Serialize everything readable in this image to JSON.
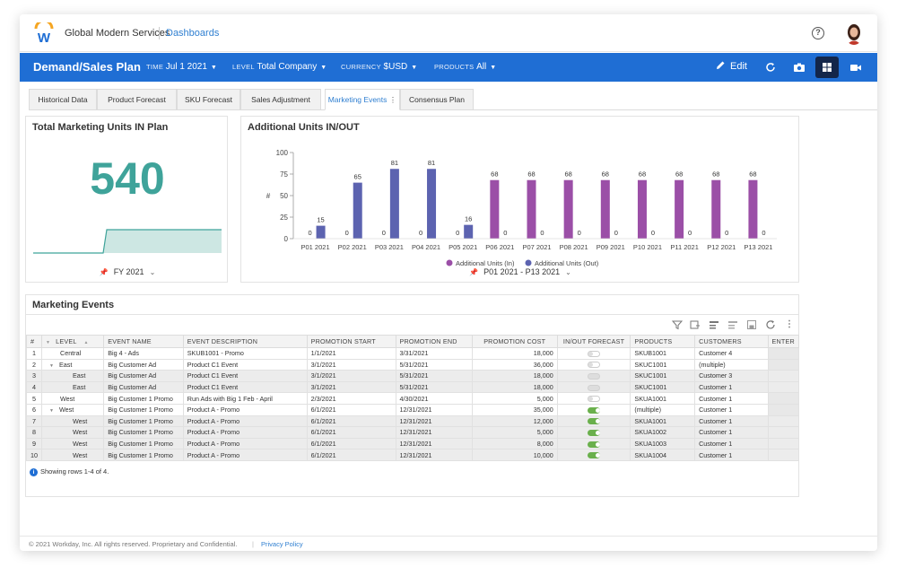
{
  "topbar": {
    "org_name": "Global Modern Services",
    "dashboards_link": "Dashboards",
    "help_icon": "help-circle-icon",
    "avatar_icon": "user-avatar"
  },
  "plan": {
    "title": "Demand/Sales Plan",
    "filters": [
      {
        "label": "TIME",
        "value": "Jul 1 2021"
      },
      {
        "label": "LEVEL",
        "value": "Total Company"
      },
      {
        "label": "CURRENCY",
        "value": "$USD"
      },
      {
        "label": "PRODUCTS",
        "value": "All"
      }
    ],
    "edit_label": "Edit"
  },
  "tabs": [
    "Historical Data",
    "Product Forecast",
    "SKU Forecast",
    "Sales Adjustment",
    "Marketing Events",
    "Consensus Plan"
  ],
  "active_tab": "Marketing Events",
  "kpi": {
    "title": "Total Marketing Units IN Plan",
    "value": "540",
    "period": "FY 2021",
    "accent": "#3fa39a"
  },
  "chart": {
    "period": "P01 2021 - P13 2021"
  },
  "chart_data": {
    "type": "bar",
    "title": "Additional Units IN/OUT",
    "ylabel": "#",
    "ylim": [
      0,
      100
    ],
    "yticks": [
      0,
      25,
      50,
      75,
      100
    ],
    "categories": [
      "P01 2021",
      "P02 2021",
      "P03 2021",
      "P04 2021",
      "P05 2021",
      "P06 2021",
      "P07 2021",
      "P08 2021",
      "P09 2021",
      "P10 2021",
      "P11 2021",
      "P12 2021",
      "P13 2021"
    ],
    "series": [
      {
        "name": "Additional Units (In)",
        "color": "#9b4fa7",
        "values": [
          0,
          0,
          0,
          0,
          0,
          68,
          68,
          68,
          68,
          68,
          68,
          68,
          68
        ]
      },
      {
        "name": "Additional Units (Out)",
        "color": "#5c63b0",
        "values": [
          15,
          65,
          81,
          81,
          16,
          0,
          0,
          0,
          0,
          0,
          0,
          0,
          0
        ]
      }
    ],
    "legend": "bottom"
  },
  "events": {
    "title": "Marketing Events",
    "columns": [
      "#",
      "LEVEL",
      "EVENT NAME",
      "EVENT DESCRIPTION",
      "PROMOTION START",
      "PROMOTION END",
      "PROMOTION COST",
      "IN/OUT FORECAST",
      "PRODUCTS",
      "CUSTOMERS",
      "ENTER"
    ],
    "rows": [
      {
        "n": "1",
        "level": "Central",
        "indent": 0,
        "caret": false,
        "event": "Big 4 - Ads",
        "desc": "SKUB1001 - Promo",
        "start": "1/1/2021",
        "end": "3/31/2021",
        "cost": "18,000",
        "toggle": "off",
        "products": "SKUB1001",
        "customers": "Customer 4"
      },
      {
        "n": "2",
        "level": "East",
        "indent": 0,
        "caret": true,
        "event": "Big Customer Ad",
        "desc": "Product C1 Event",
        "start": "3/1/2021",
        "end": "5/31/2021",
        "cost": "36,000",
        "toggle": "off",
        "products": "SKUC1001",
        "customers": "(multiple)"
      },
      {
        "n": "3",
        "level": "East",
        "indent": 1,
        "caret": false,
        "event": "Big Customer Ad",
        "desc": "Product C1 Event",
        "start": "3/1/2021",
        "end": "5/31/2021",
        "cost": "18,000",
        "toggle": "dim",
        "products": "SKUC1001",
        "customers": "Customer 3"
      },
      {
        "n": "4",
        "level": "East",
        "indent": 1,
        "caret": false,
        "event": "Big Customer Ad",
        "desc": "Product C1 Event",
        "start": "3/1/2021",
        "end": "5/31/2021",
        "cost": "18,000",
        "toggle": "dim",
        "products": "SKUC1001",
        "customers": "Customer 1"
      },
      {
        "n": "5",
        "level": "West",
        "indent": 0,
        "caret": false,
        "event": "Big Customer 1 Promo",
        "desc": "Run Ads with Big 1 Feb - April",
        "start": "2/3/2021",
        "end": "4/30/2021",
        "cost": "5,000",
        "toggle": "off",
        "products": "SKUA1001",
        "customers": "Customer 1"
      },
      {
        "n": "6",
        "level": "West",
        "indent": 0,
        "caret": true,
        "event": "Big Customer 1 Promo",
        "desc": "Product A - Promo",
        "start": "6/1/2021",
        "end": "12/31/2021",
        "cost": "35,000",
        "toggle": "on",
        "products": "(multiple)",
        "customers": "Customer 1"
      },
      {
        "n": "7",
        "level": "West",
        "indent": 1,
        "caret": false,
        "event": "Big Customer 1 Promo",
        "desc": "Product A - Promo",
        "start": "6/1/2021",
        "end": "12/31/2021",
        "cost": "12,000",
        "toggle": "on",
        "products": "SKUA1001",
        "customers": "Customer 1"
      },
      {
        "n": "8",
        "level": "West",
        "indent": 1,
        "caret": false,
        "event": "Big Customer 1 Promo",
        "desc": "Product A - Promo",
        "start": "6/1/2021",
        "end": "12/31/2021",
        "cost": "5,000",
        "toggle": "on",
        "products": "SKUA1002",
        "customers": "Customer 1"
      },
      {
        "n": "9",
        "level": "West",
        "indent": 1,
        "caret": false,
        "event": "Big Customer 1 Promo",
        "desc": "Product A - Promo",
        "start": "6/1/2021",
        "end": "12/31/2021",
        "cost": "8,000",
        "toggle": "on",
        "products": "SKUA1003",
        "customers": "Customer 1"
      },
      {
        "n": "10",
        "level": "West",
        "indent": 1,
        "caret": false,
        "event": "Big Customer 1 Promo",
        "desc": "Product A - Promo",
        "start": "6/1/2021",
        "end": "12/31/2021",
        "cost": "10,000",
        "toggle": "on",
        "products": "SKUA1004",
        "customers": "Customer 1"
      }
    ],
    "showing": "Showing rows 1-4 of 4."
  },
  "footer": {
    "copyright": "© 2021 Workday, Inc. All rights reserved. Proprietary and Confidential.",
    "privacy": "Privacy Policy"
  }
}
